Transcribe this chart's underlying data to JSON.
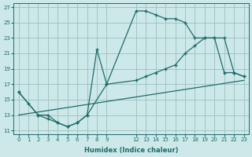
{
  "xlabel": "Humidex (Indice chaleur)",
  "bg_color": "#cde8e8",
  "grid_color": "#9bbfbf",
  "line_color": "#1e6b6b",
  "xlim": [
    -0.5,
    23.5
  ],
  "ylim": [
    10.5,
    27.5
  ],
  "xtick_positions": [
    0,
    1,
    2,
    3,
    4,
    5,
    6,
    7,
    8,
    9,
    12,
    13,
    14,
    15,
    16,
    17,
    18,
    19,
    20,
    21,
    22,
    23
  ],
  "xtick_labels": [
    "0",
    "1",
    "2",
    "3",
    "4",
    "5",
    "6",
    "7",
    "8",
    "9",
    "12",
    "13",
    "14",
    "15",
    "16",
    "17",
    "18",
    "19",
    "20",
    "21",
    "22",
    "23"
  ],
  "yticks": [
    11,
    13,
    15,
    17,
    19,
    21,
    23,
    25,
    27
  ],
  "series": [
    {
      "x": [
        0,
        1,
        2,
        3,
        4,
        5,
        6,
        7,
        8,
        9,
        12,
        13,
        14,
        15,
        16,
        17,
        18,
        19,
        20,
        21,
        22,
        23
      ],
      "y": [
        16,
        14.5,
        13,
        12.5,
        12,
        11.5,
        12,
        13,
        21.5,
        17,
        26.5,
        26.5,
        26,
        25.5,
        25.5,
        25,
        23,
        23,
        23,
        18.5,
        18.5,
        18
      ]
    },
    {
      "x": [
        0,
        2,
        3,
        4,
        5,
        6,
        7,
        9,
        12,
        13,
        14,
        15,
        16,
        17,
        18,
        19,
        20,
        21,
        22,
        23
      ],
      "y": [
        16,
        13,
        13,
        12,
        11.5,
        12,
        13,
        17,
        17.5,
        18,
        18.5,
        19,
        19.5,
        21,
        22,
        23,
        23,
        23,
        18.5,
        18
      ]
    },
    {
      "x": [
        0,
        23
      ],
      "y": [
        13,
        17.5
      ]
    }
  ]
}
